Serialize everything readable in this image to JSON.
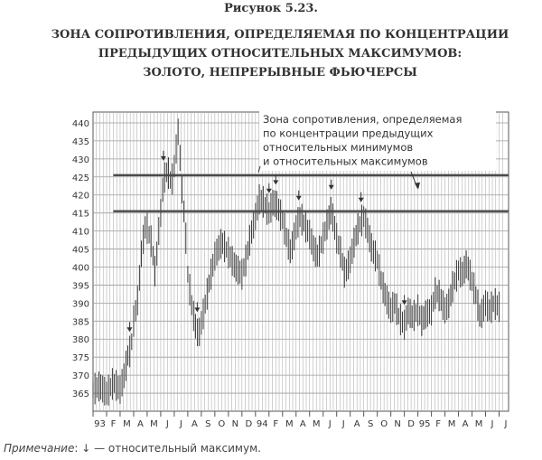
{
  "figure_number": "Рисунок 5.23.",
  "title_lines": [
    "ЗОНА СОПРОТИВЛЕНИЯ, ОПРЕДЕЛЯЕМАЯ ПО КОНЦЕНТРАЦИИ",
    "ПРЕДЫДУЩИХ ОТНОСИТЕЛЬНЫХ МАКСИМУМОВ:",
    "ЗОЛОТО, НЕПРЕРЫВНЫЕ ФЬЮЧЕРСЫ"
  ],
  "note": {
    "label": "Примечание",
    "text": ": ↓ — относительный максимум."
  },
  "chart_data": {
    "type": "bar",
    "ylim": [
      360,
      443
    ],
    "y_ticks": [
      365,
      370,
      375,
      380,
      385,
      390,
      395,
      400,
      405,
      410,
      415,
      420,
      425,
      430,
      435,
      440
    ],
    "x_tick_labels": [
      "93",
      "F",
      "M",
      "A",
      "M",
      "J",
      "J",
      "A",
      "S",
      "O",
      "N",
      "D",
      "94",
      "F",
      "M",
      "A",
      "M",
      "J",
      "J",
      "A",
      "S",
      "O",
      "N",
      "D",
      "95",
      "F",
      "M",
      "A",
      "M",
      "J",
      "J"
    ],
    "resistance_lines": [
      425.5,
      415.5
    ],
    "annotation_lines": [
      "Зона сопротивления, определяемая",
      "по концентрации предыдущих",
      "относительных минимумов",
      "и относительных максимумов"
    ],
    "relative_highs_months": [
      2.7,
      5.2,
      7.7,
      13.0,
      13.5,
      15.2,
      17.6,
      19.8,
      23.0
    ],
    "series": [
      {
        "x_months": [
          0,
          0.5,
          1.0,
          1.5,
          2.0,
          2.3,
          2.6,
          2.8,
          3.0,
          3.3,
          3.6,
          3.9,
          4.3,
          4.6,
          4.8,
          5.0,
          5.2,
          5.5,
          5.8,
          6.0,
          6.3,
          6.6,
          6.8,
          7.0,
          7.3,
          7.6,
          7.8,
          8.2,
          8.6,
          9.0,
          9.5,
          10.0,
          10.5,
          11.0,
          11.3,
          11.6,
          12.0,
          12.3,
          12.6,
          13.0,
          13.3,
          13.6,
          14.0,
          14.3,
          14.6,
          15.0,
          15.3,
          15.6,
          16.0,
          16.3,
          16.6,
          17.0,
          17.3,
          17.6,
          18.0,
          18.3,
          18.6,
          19.0,
          19.3,
          19.6,
          20.0,
          20.3,
          20.6,
          21.0,
          21.3,
          21.6,
          22.0,
          22.3,
          22.6,
          23.0,
          23.3,
          23.6,
          24.0,
          24.3,
          24.6,
          25.0,
          25.3,
          25.6,
          26.0,
          26.3,
          26.6,
          27.0,
          27.3,
          27.6,
          28.0,
          28.3,
          28.6,
          29.0,
          29.3,
          29.6,
          30.0
        ],
        "values": [
          366,
          367,
          365,
          368,
          366,
          370,
          376,
          377,
          385,
          391,
          405,
          412,
          407,
          398,
          408,
          415,
          424,
          427,
          423,
          428,
          438,
          420,
          412,
          398,
          389,
          383,
          381,
          388,
          396,
          403,
          407,
          404,
          400,
          398,
          402,
          408,
          414,
          419,
          418,
          415,
          418,
          417,
          413,
          408,
          404,
          411,
          414,
          412,
          409,
          405,
          403,
          408,
          412,
          416,
          408,
          404,
          398,
          402,
          407,
          411,
          414,
          410,
          405,
          402,
          396,
          392,
          388,
          390,
          386,
          384,
          388,
          386,
          388,
          385,
          387,
          388,
          393,
          392,
          388,
          390,
          395,
          399,
          398,
          401,
          396,
          392,
          386,
          390,
          388,
          390,
          389
        ]
      }
    ]
  }
}
